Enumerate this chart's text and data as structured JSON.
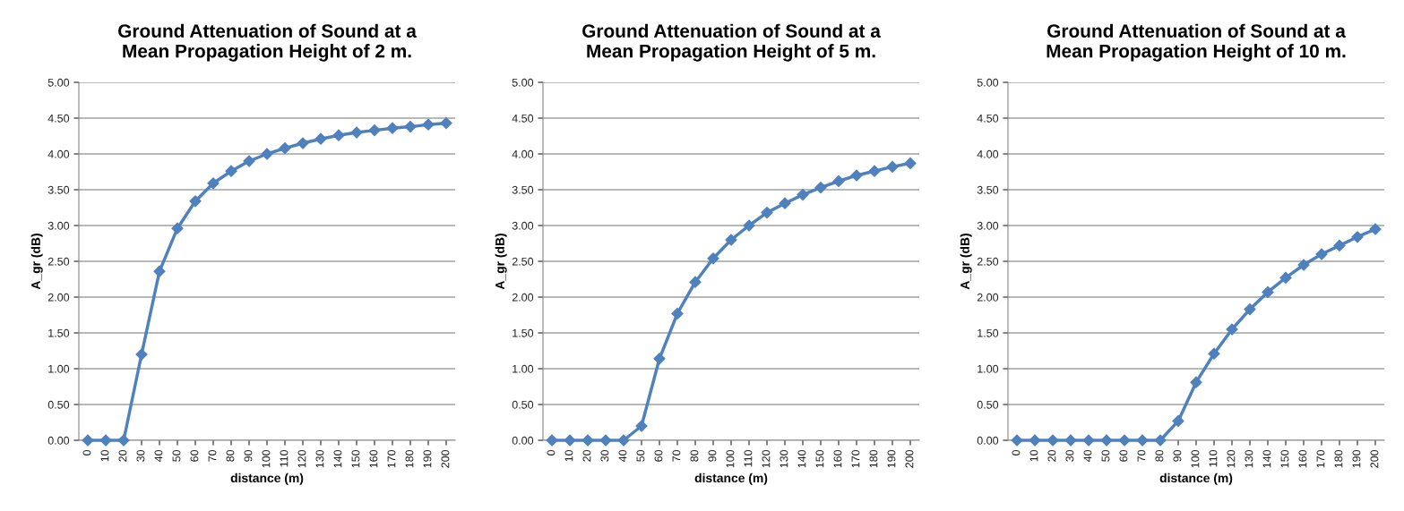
{
  "chart_data": [
    {
      "type": "line",
      "title": "Ground Attenuation of Sound at a\nMean Propagation Height of 2 m.",
      "xlabel": "distance (m)",
      "ylabel": "A_gr (dB)",
      "categories": [
        "0",
        "10",
        "20",
        "30",
        "40",
        "50",
        "60",
        "70",
        "80",
        "90",
        "100",
        "110",
        "120",
        "130",
        "140",
        "150",
        "160",
        "170",
        "180",
        "190",
        "200"
      ],
      "series": [
        {
          "color": "#4f81bd",
          "values": [
            0,
            0,
            0,
            1.2,
            2.36,
            2.96,
            3.34,
            3.59,
            3.76,
            3.9,
            4.0,
            4.08,
            4.15,
            4.21,
            4.26,
            4.3,
            4.33,
            4.36,
            4.38,
            4.41,
            4.43
          ]
        }
      ],
      "ylim": [
        0,
        5
      ],
      "yticks": [
        {
          "value": 0,
          "label": "0.00"
        },
        {
          "value": 0.5,
          "label": "0.50"
        },
        {
          "value": 1,
          "label": "1.00"
        },
        {
          "value": 1.5,
          "label": "1.50"
        },
        {
          "value": 2,
          "label": "2.00"
        },
        {
          "value": 2.5,
          "label": "2.50"
        },
        {
          "value": 3,
          "label": "3.00"
        },
        {
          "value": 3.5,
          "label": "3.50"
        },
        {
          "value": 4,
          "label": "4.00"
        },
        {
          "value": 4.5,
          "label": "4.50"
        },
        {
          "value": 5,
          "label": "5.00"
        }
      ],
      "grid": "y",
      "marker": "diamond",
      "line_style": "solid"
    },
    {
      "type": "line",
      "title": "Ground Attenuation of Sound at a\nMean Propagation Height of 5 m.",
      "xlabel": "distance (m)",
      "ylabel": "A_gr (dB)",
      "categories": [
        "0",
        "10",
        "20",
        "30",
        "40",
        "50",
        "60",
        "70",
        "80",
        "90",
        "100",
        "110",
        "120",
        "130",
        "140",
        "150",
        "160",
        "170",
        "180",
        "190",
        "200"
      ],
      "series": [
        {
          "color": "#4f81bd",
          "values": [
            0,
            0,
            0,
            0,
            0,
            0.2,
            1.14,
            1.77,
            2.21,
            2.54,
            2.8,
            3.0,
            3.18,
            3.31,
            3.43,
            3.53,
            3.62,
            3.7,
            3.76,
            3.82,
            3.87
          ]
        }
      ],
      "ylim": [
        0,
        5
      ],
      "yticks": [
        {
          "value": 0,
          "label": "0.00"
        },
        {
          "value": 0.5,
          "label": "0.50"
        },
        {
          "value": 1,
          "label": "1.00"
        },
        {
          "value": 1.5,
          "label": "1.50"
        },
        {
          "value": 2,
          "label": "2.00"
        },
        {
          "value": 2.5,
          "label": "2.50"
        },
        {
          "value": 3,
          "label": "3.00"
        },
        {
          "value": 3.5,
          "label": "3.50"
        },
        {
          "value": 4,
          "label": "4.00"
        },
        {
          "value": 4.5,
          "label": "4.50"
        },
        {
          "value": 5,
          "label": "5.00"
        }
      ],
      "grid": "y",
      "marker": "diamond",
      "line_style": "solid"
    },
    {
      "type": "line",
      "title": "Ground Attenuation of Sound at a\nMean Propagation Height of 10 m.",
      "xlabel": "distance (m)",
      "ylabel": "A_gr (dB)",
      "categories": [
        "0",
        "10",
        "20",
        "30",
        "40",
        "50",
        "60",
        "70",
        "80",
        "90",
        "100",
        "110",
        "120",
        "130",
        "140",
        "150",
        "160",
        "170",
        "180",
        "190",
        "200"
      ],
      "series": [
        {
          "color": "#4f81bd",
          "values": [
            0,
            0,
            0,
            0,
            0,
            0,
            0,
            0,
            0,
            0.27,
            0.81,
            1.21,
            1.55,
            1.83,
            2.07,
            2.27,
            2.45,
            2.6,
            2.72,
            2.84,
            2.95
          ]
        }
      ],
      "ylim": [
        0,
        5
      ],
      "yticks": [
        {
          "value": 0,
          "label": "0.00"
        },
        {
          "value": 0.5,
          "label": "0.50"
        },
        {
          "value": 1,
          "label": "1.00"
        },
        {
          "value": 1.5,
          "label": "1.50"
        },
        {
          "value": 2,
          "label": "2.00"
        },
        {
          "value": 2.5,
          "label": "2.50"
        },
        {
          "value": 3,
          "label": "3.00"
        },
        {
          "value": 3.5,
          "label": "3.50"
        },
        {
          "value": 4,
          "label": "4.00"
        },
        {
          "value": 4.5,
          "label": "4.50"
        },
        {
          "value": 5,
          "label": "5.00"
        }
      ],
      "grid": "y",
      "marker": "diamond",
      "line_style": "solid"
    }
  ]
}
